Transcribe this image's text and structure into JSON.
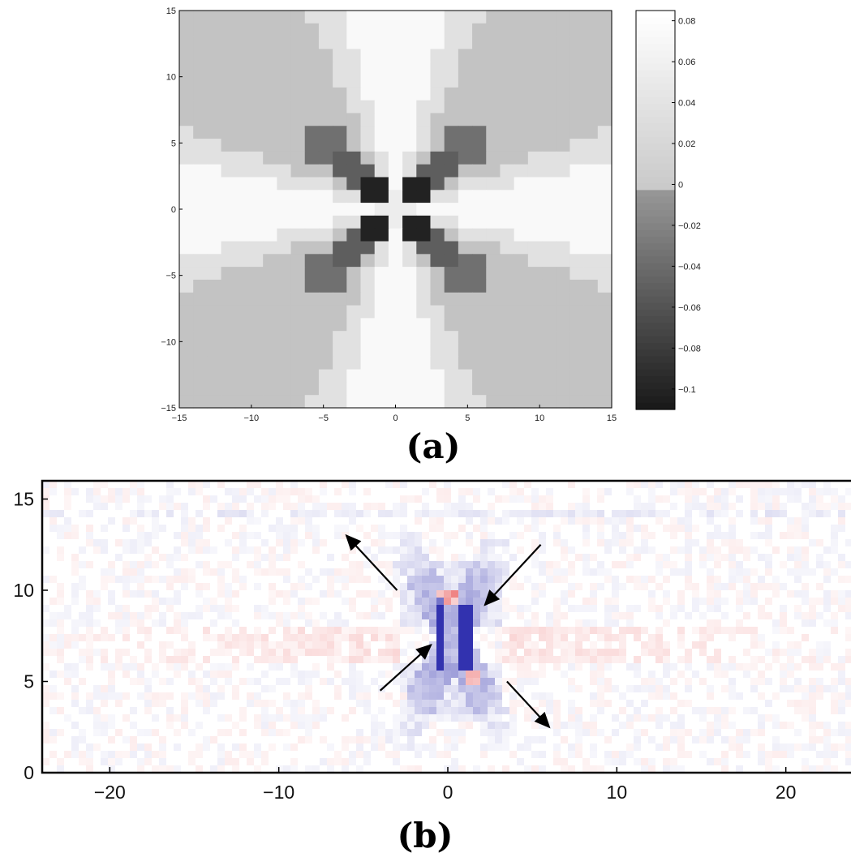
{
  "chart_data": [
    {
      "type": "heatmap",
      "caption": "(a)",
      "xlim": [
        -15,
        15
      ],
      "ylim": [
        15,
        -15
      ],
      "x_ticks": [
        "−15",
        "−10",
        "−5",
        "0",
        "5",
        "10",
        "15"
      ],
      "y_ticks": [
        "−15",
        "−10",
        "−5",
        "0",
        "5",
        "10",
        "15"
      ],
      "colorbar": {
        "range": [
          -0.11,
          0.085
        ],
        "ticks": [
          "0.08",
          "0.06",
          "0.04",
          "0.02",
          "0",
          "−0.02",
          "−0.04",
          "−0.06",
          "−0.08",
          "−0.1"
        ],
        "tick_values": [
          0.08,
          0.06,
          0.04,
          0.02,
          0,
          -0.02,
          -0.04,
          -0.06,
          -0.08,
          -0.1
        ]
      },
      "pattern": "four-fold symmetric: light bands along the horizontal and vertical axes, dark arms along the diagonals near the center, minimum near the origin",
      "level_values": {
        "axis_band": 0.07,
        "diagonal_outer": 0.035,
        "diagonal_arm": -0.035,
        "center_arm": -0.1
      }
    },
    {
      "type": "heatmap",
      "caption": "(b)",
      "xlim": [
        -24,
        24
      ],
      "ylim": [
        0,
        16
      ],
      "x_ticks": [
        "−20",
        "−10",
        "0",
        "10",
        "20"
      ],
      "y_ticks": [
        "0",
        "5",
        "10",
        "15"
      ],
      "colors": {
        "positive": "#e02020",
        "negative": "#3030b0",
        "zero": "#ffffff"
      },
      "arrows": [
        {
          "direction": "outward",
          "from": [
            -3,
            10
          ],
          "to": [
            -6,
            13
          ]
        },
        {
          "direction": "inward",
          "from": [
            5.5,
            12.5
          ],
          "to": [
            2.2,
            9.2
          ]
        },
        {
          "direction": "inward",
          "from": [
            -4,
            4.5
          ],
          "to": [
            -1,
            7
          ]
        },
        {
          "direction": "outward",
          "from": [
            3.5,
            5
          ],
          "to": [
            6,
            2.5
          ]
        }
      ],
      "features": [
        {
          "kind": "negative-column",
          "x": -0.5,
          "y_from": 5.8,
          "y_to": 9.5
        },
        {
          "kind": "negative-column",
          "x": 1.0,
          "y_from": 5.8,
          "y_to": 9.2
        },
        {
          "kind": "positive-spot",
          "x": 0.0,
          "y": 9.6
        },
        {
          "kind": "positive-spot",
          "x": 1.5,
          "y": 5.3
        }
      ]
    }
  ]
}
